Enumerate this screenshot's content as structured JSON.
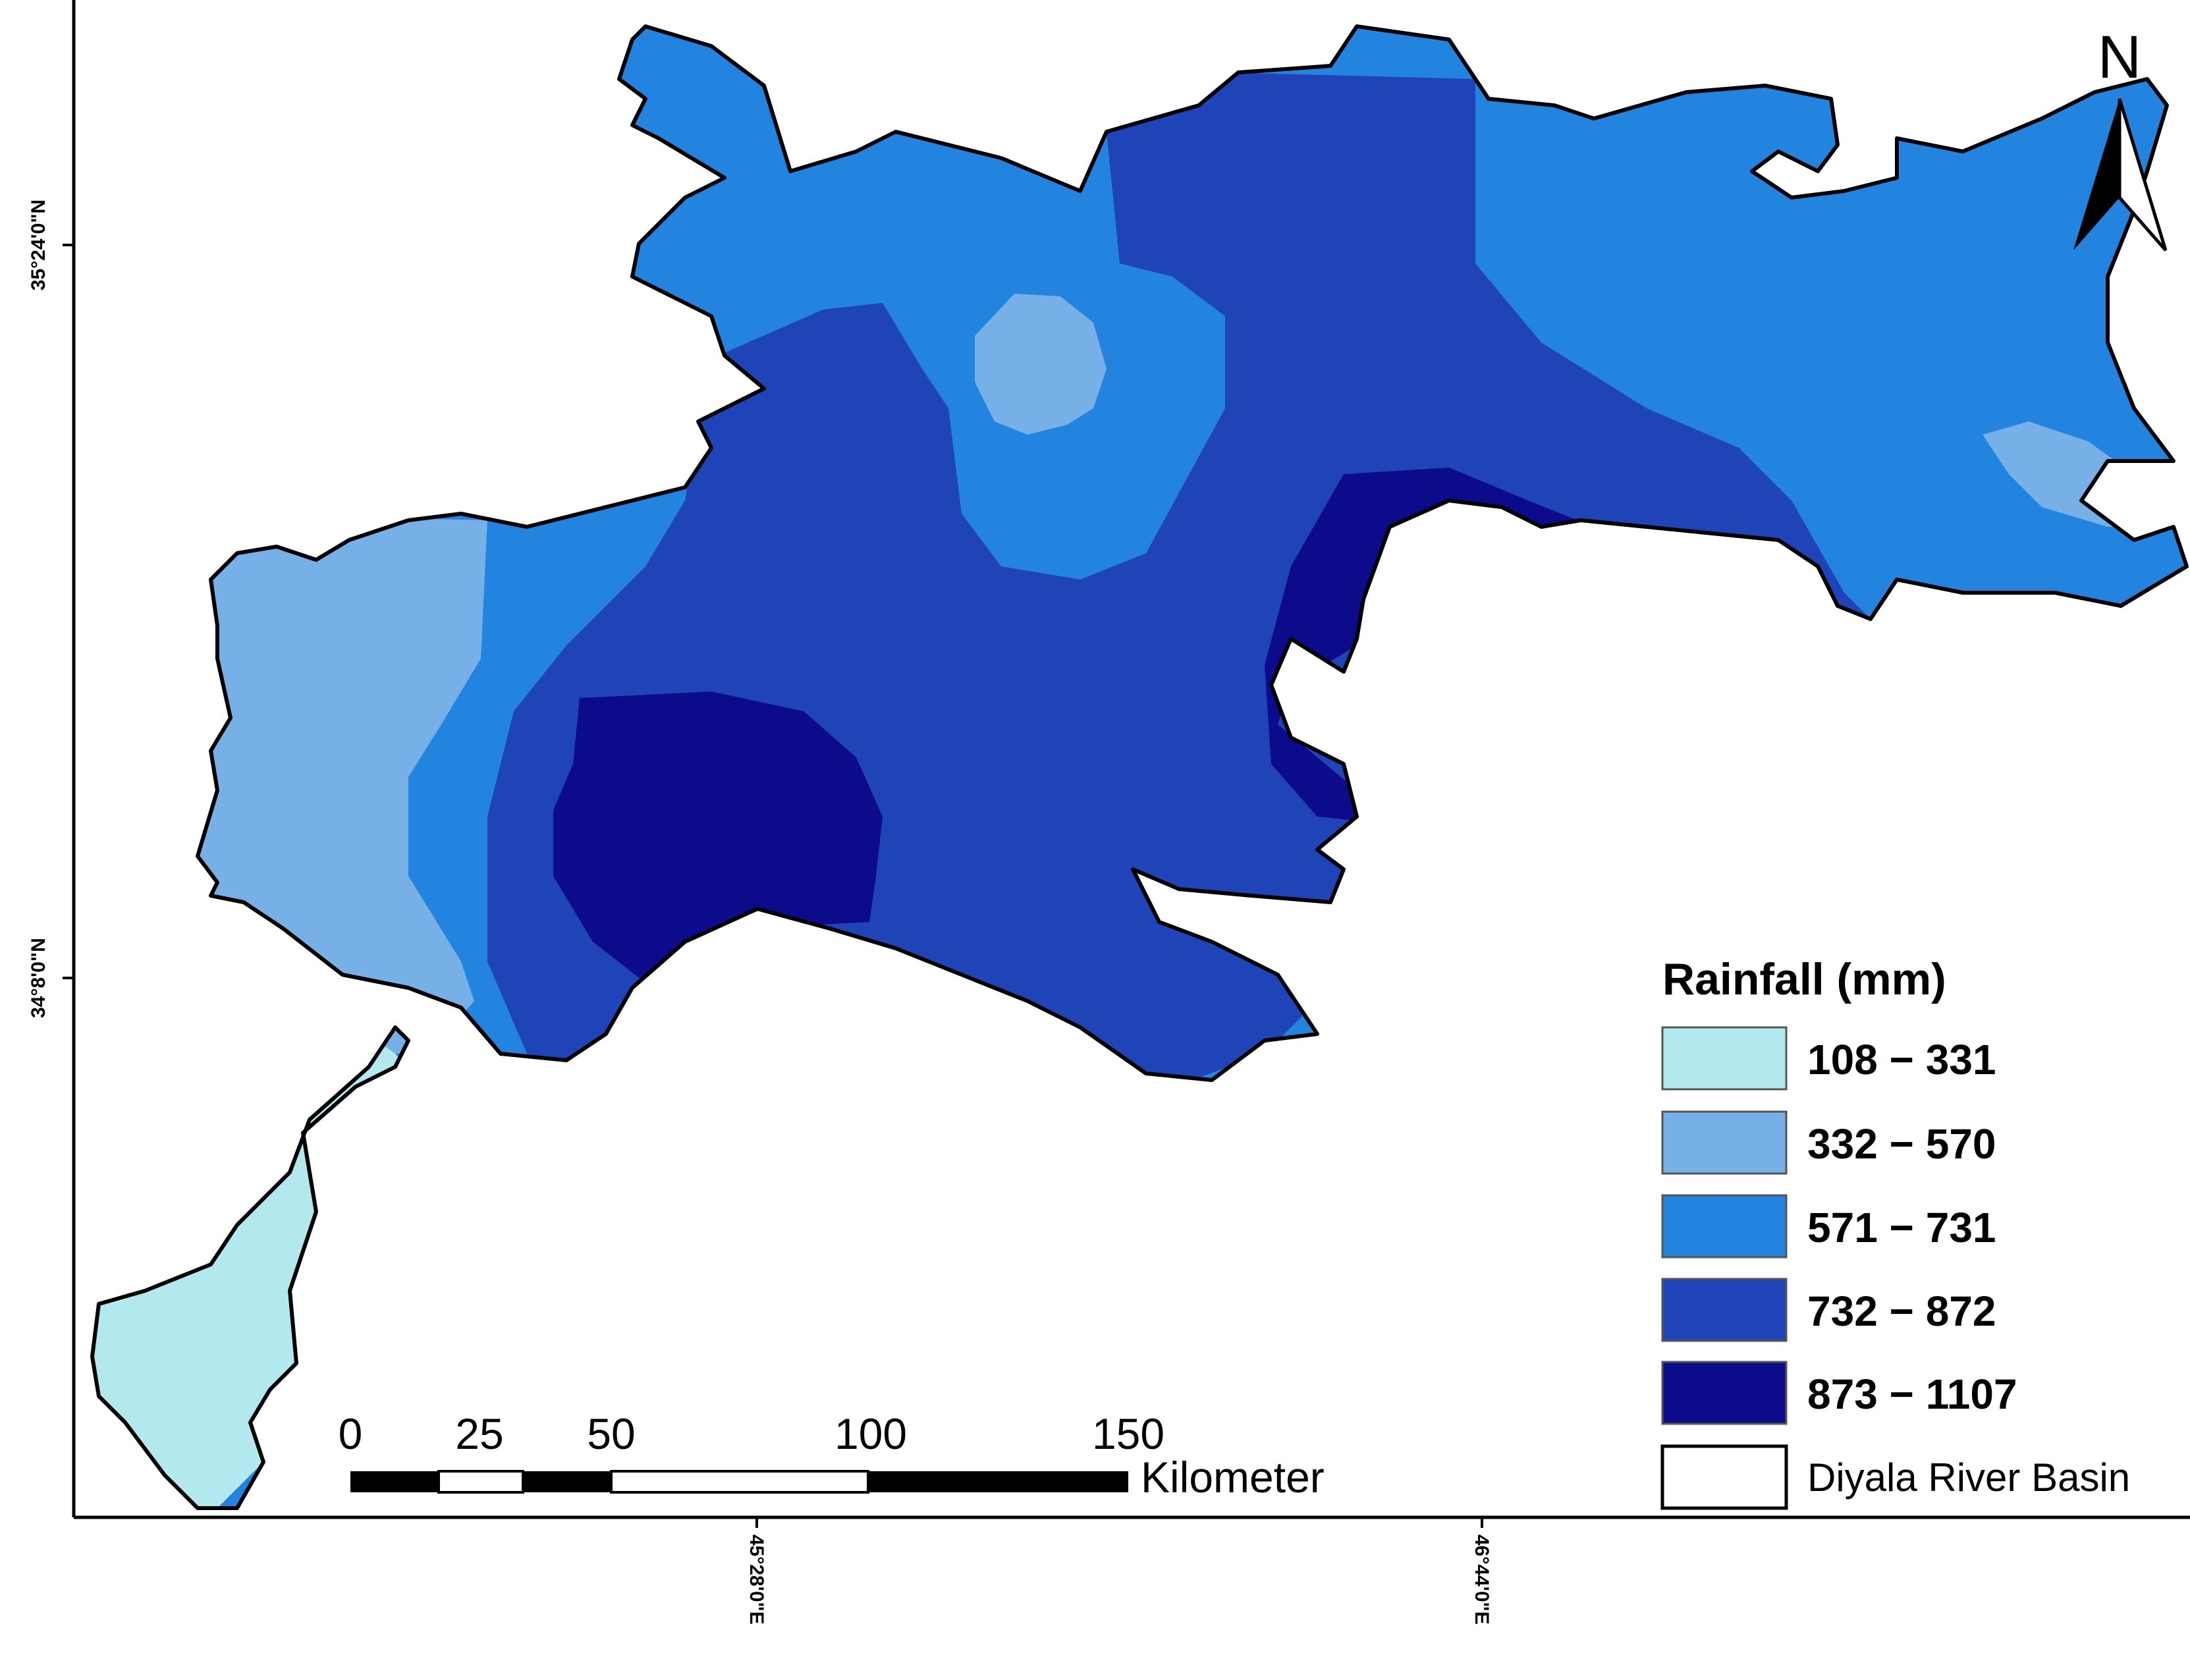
{
  "colors": {
    "class_108_331": "#b2e8ee",
    "class_332_570": "#77b0e6",
    "class_571_731": "#2384e0",
    "class_732_872": "#1f44b8",
    "class_873_1107": "#0c0b8c",
    "outline": "#000000"
  },
  "axes": {
    "lat_ticks": [
      "35°24'0\"N",
      "34°8'0\"N"
    ],
    "lon_ticks": [
      "45°28'0\"E",
      "46°44'0\"E"
    ]
  },
  "north_arrow": {
    "label": "N",
    "icon": "north-arrow-icon"
  },
  "scale_bar": {
    "labels": [
      "0",
      "25",
      "50",
      "100",
      "150"
    ],
    "unit": "Kilometer"
  },
  "legend": {
    "title": "Rainfall (mm)",
    "items": [
      {
        "label": "108 − 331",
        "color": "#b2e8ee"
      },
      {
        "label": "332 − 570",
        "color": "#77b0e6"
      },
      {
        "label": "571 − 731",
        "color": "#2384e0"
      },
      {
        "label": "732 − 872",
        "color": "#1f44b8"
      },
      {
        "label": "873 − 1107",
        "color": "#0c0b8c"
      },
      {
        "label": "Diyala River Basin",
        "color": "#ffffff"
      }
    ]
  }
}
